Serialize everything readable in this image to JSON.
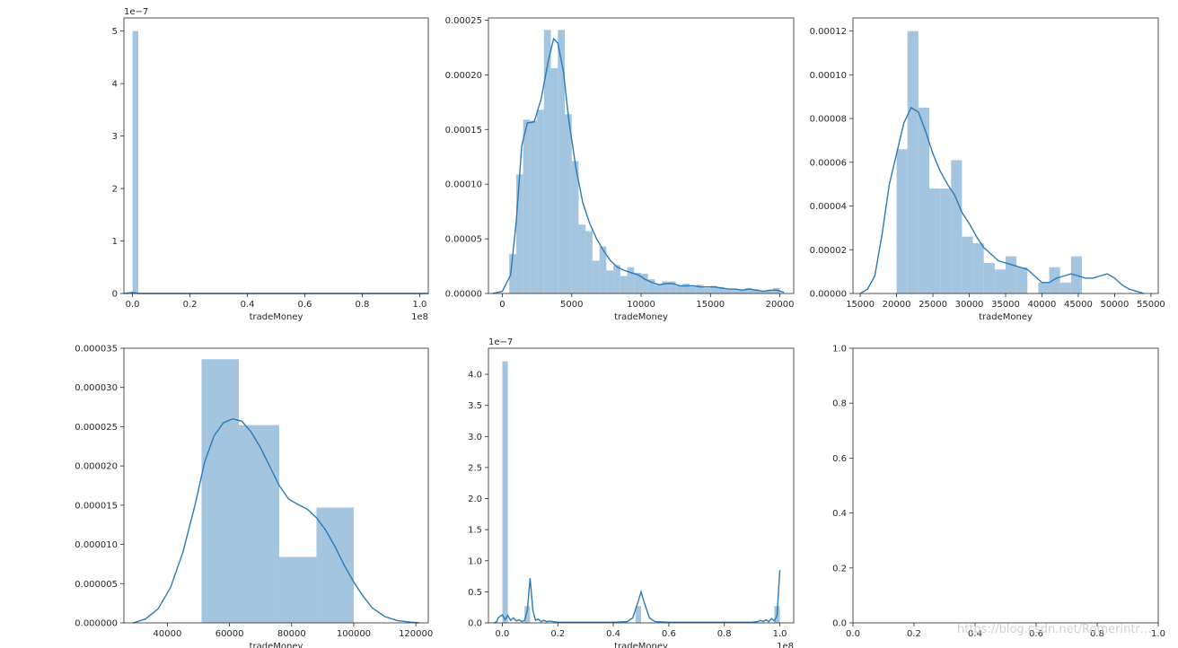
{
  "watermark": "https://blog.csdn.net/Romerintr…",
  "chart_data": [
    {
      "type": "histogram",
      "xlabel": "tradeMoney",
      "ylabel": "",
      "x_scale_label": "1e8",
      "y_scale_label": "1e−7",
      "xlim": [
        -0.03,
        1.03
      ],
      "ylim": [
        0,
        5.25
      ],
      "xticks": [
        0.0,
        0.2,
        0.4,
        0.6,
        0.8,
        1.0
      ],
      "xtick_labels": [
        "0.0",
        "0.2",
        "0.4",
        "0.6",
        "0.8",
        "1.0"
      ],
      "yticks": [
        0,
        1,
        2,
        3,
        4,
        5
      ],
      "ytick_labels": [
        "0",
        "1",
        "2",
        "3",
        "4",
        "5"
      ],
      "bins": [
        {
          "x0": 0.0,
          "x1": 0.02,
          "y": 5.0
        }
      ],
      "kde": [
        [
          -0.03,
          0.0
        ],
        [
          0.0,
          0.02
        ],
        [
          0.02,
          0.0
        ],
        [
          1.03,
          0.0
        ]
      ]
    },
    {
      "type": "histogram",
      "xlabel": "tradeMoney",
      "ylabel": "",
      "xlim": [
        -1000,
        21000
      ],
      "ylim": [
        0,
        0.000252
      ],
      "xticks": [
        0,
        5000,
        10000,
        15000,
        20000
      ],
      "xtick_labels": [
        "0",
        "5000",
        "10000",
        "15000",
        "20000"
      ],
      "yticks": [
        0,
        5e-05,
        0.0001,
        0.00015,
        0.0002,
        0.00025
      ],
      "ytick_labels": [
        "0.00000",
        "0.00005",
        "0.00010",
        "0.00015",
        "0.00020",
        "0.00025"
      ],
      "bins": [
        {
          "x0": 500,
          "x1": 1000,
          "y": 3.6e-05
        },
        {
          "x0": 1000,
          "x1": 1500,
          "y": 0.000109
        },
        {
          "x0": 1500,
          "x1": 2000,
          "y": 0.000159
        },
        {
          "x0": 2000,
          "x1": 2500,
          "y": 0.000158
        },
        {
          "x0": 2500,
          "x1": 3000,
          "y": 0.000168
        },
        {
          "x0": 3000,
          "x1": 3500,
          "y": 0.000241
        },
        {
          "x0": 3500,
          "x1": 4000,
          "y": 0.000206
        },
        {
          "x0": 4000,
          "x1": 4500,
          "y": 0.000241
        },
        {
          "x0": 4500,
          "x1": 5000,
          "y": 0.000164
        },
        {
          "x0": 5000,
          "x1": 5500,
          "y": 0.000121
        },
        {
          "x0": 5500,
          "x1": 6000,
          "y": 6.3e-05
        },
        {
          "x0": 6000,
          "x1": 6500,
          "y": 5.7e-05
        },
        {
          "x0": 6500,
          "x1": 7000,
          "y": 3e-05
        },
        {
          "x0": 7000,
          "x1": 7500,
          "y": 4.3e-05
        },
        {
          "x0": 7500,
          "x1": 8000,
          "y": 2.1e-05
        },
        {
          "x0": 8000,
          "x1": 8500,
          "y": 2.6e-05
        },
        {
          "x0": 8500,
          "x1": 9000,
          "y": 1.6e-05
        },
        {
          "x0": 9000,
          "x1": 9500,
          "y": 2.4e-05
        },
        {
          "x0": 9500,
          "x1": 10000,
          "y": 1.9e-05
        },
        {
          "x0": 10000,
          "x1": 10500,
          "y": 1.8e-05
        },
        {
          "x0": 10500,
          "x1": 11000,
          "y": 1.3e-05
        },
        {
          "x0": 11000,
          "x1": 11500,
          "y": 8e-06
        },
        {
          "x0": 11500,
          "x1": 12000,
          "y": 1.1e-05
        },
        {
          "x0": 12000,
          "x1": 12500,
          "y": 1.1e-05
        },
        {
          "x0": 12500,
          "x1": 13000,
          "y": 7e-06
        },
        {
          "x0": 13000,
          "x1": 13500,
          "y": 9e-06
        },
        {
          "x0": 13500,
          "x1": 14000,
          "y": 6e-06
        },
        {
          "x0": 14000,
          "x1": 14500,
          "y": 8e-06
        },
        {
          "x0": 14500,
          "x1": 15000,
          "y": 5e-06
        },
        {
          "x0": 15000,
          "x1": 15500,
          "y": 7e-06
        },
        {
          "x0": 15500,
          "x1": 16000,
          "y": 6e-06
        },
        {
          "x0": 16000,
          "x1": 16500,
          "y": 4e-06
        },
        {
          "x0": 16500,
          "x1": 17000,
          "y": 4e-06
        },
        {
          "x0": 17000,
          "x1": 17500,
          "y": 3e-06
        },
        {
          "x0": 17500,
          "x1": 18000,
          "y": 5e-06
        },
        {
          "x0": 18000,
          "x1": 18500,
          "y": 4e-06
        },
        {
          "x0": 18500,
          "x1": 19000,
          "y": 2e-06
        },
        {
          "x0": 19000,
          "x1": 19500,
          "y": 3e-06
        },
        {
          "x0": 19500,
          "x1": 20000,
          "y": 5e-06
        }
      ],
      "kde": [
        [
          -700,
          0.0
        ],
        [
          0,
          2e-06
        ],
        [
          600,
          1.7e-05
        ],
        [
          1000,
          6.5e-05
        ],
        [
          1400,
          0.000135
        ],
        [
          1800,
          0.000156
        ],
        [
          2300,
          0.000157
        ],
        [
          2800,
          0.000178
        ],
        [
          3300,
          0.000212
        ],
        [
          3700,
          0.000233
        ],
        [
          4000,
          0.000229
        ],
        [
          4400,
          0.000203
        ],
        [
          4800,
          0.000158
        ],
        [
          5300,
          0.000115
        ],
        [
          5800,
          8.3e-05
        ],
        [
          6300,
          6.4e-05
        ],
        [
          6800,
          5e-05
        ],
        [
          7300,
          3.9e-05
        ],
        [
          7800,
          3e-05
        ],
        [
          8300,
          2.4e-05
        ],
        [
          8800,
          2.1e-05
        ],
        [
          9300,
          1.9e-05
        ],
        [
          9800,
          1.7e-05
        ],
        [
          10300,
          1.3e-05
        ],
        [
          10800,
          1e-05
        ],
        [
          11300,
          8e-06
        ],
        [
          11800,
          9e-06
        ],
        [
          12300,
          9e-06
        ],
        [
          12800,
          7e-06
        ],
        [
          13300,
          7e-06
        ],
        [
          13800,
          7e-06
        ],
        [
          14300,
          6e-06
        ],
        [
          14800,
          6e-06
        ],
        [
          15300,
          6e-06
        ],
        [
          15800,
          5e-06
        ],
        [
          16300,
          4e-06
        ],
        [
          16800,
          4e-06
        ],
        [
          17300,
          3e-06
        ],
        [
          17800,
          4e-06
        ],
        [
          18300,
          3e-06
        ],
        [
          18800,
          2e-06
        ],
        [
          19300,
          3e-06
        ],
        [
          19800,
          3e-06
        ],
        [
          20300,
          1e-06
        ]
      ]
    },
    {
      "type": "histogram",
      "xlabel": "tradeMoney",
      "ylabel": "",
      "xlim": [
        14000,
        56000
      ],
      "ylim": [
        0,
        0.000126
      ],
      "xticks": [
        15000,
        20000,
        25000,
        30000,
        35000,
        40000,
        45000,
        50000,
        55000
      ],
      "xtick_labels": [
        "15000",
        "20000",
        "25000",
        "30000",
        "35000",
        "40000",
        "45000",
        "50000",
        "55000"
      ],
      "yticks": [
        0,
        2e-05,
        4e-05,
        6e-05,
        8e-05,
        0.0001,
        0.00012
      ],
      "ytick_labels": [
        "0.00000",
        "0.00002",
        "0.00004",
        "0.00006",
        "0.00008",
        "0.00010",
        "0.00012"
      ],
      "bins": [
        {
          "x0": 20000,
          "x1": 21500,
          "y": 6.6e-05
        },
        {
          "x0": 21500,
          "x1": 23000,
          "y": 0.00012
        },
        {
          "x0": 23000,
          "x1": 24500,
          "y": 8.5e-05
        },
        {
          "x0": 24500,
          "x1": 26000,
          "y": 4.8e-05
        },
        {
          "x0": 26000,
          "x1": 27500,
          "y": 4.8e-05
        },
        {
          "x0": 27500,
          "x1": 29000,
          "y": 6.1e-05
        },
        {
          "x0": 29000,
          "x1": 30500,
          "y": 2.6e-05
        },
        {
          "x0": 30500,
          "x1": 32000,
          "y": 2.3e-05
        },
        {
          "x0": 32000,
          "x1": 33500,
          "y": 1.4e-05
        },
        {
          "x0": 33500,
          "x1": 35000,
          "y": 1.1e-05
        },
        {
          "x0": 35000,
          "x1": 36500,
          "y": 1.7e-05
        },
        {
          "x0": 36500,
          "x1": 38000,
          "y": 1.2e-05
        },
        {
          "x0": 38000,
          "x1": 39500,
          "y": 0.0
        },
        {
          "x0": 39500,
          "x1": 41000,
          "y": 5e-06
        },
        {
          "x0": 41000,
          "x1": 42500,
          "y": 1.2e-05
        },
        {
          "x0": 42500,
          "x1": 44000,
          "y": 5e-06
        },
        {
          "x0": 44000,
          "x1": 45500,
          "y": 1.7e-05
        }
      ],
      "kde": [
        [
          15000,
          0.0
        ],
        [
          16000,
          2e-06
        ],
        [
          17000,
          8e-06
        ],
        [
          18000,
          2.7e-05
        ],
        [
          19000,
          5e-05
        ],
        [
          20000,
          6.4e-05
        ],
        [
          21000,
          7.8e-05
        ],
        [
          22000,
          8.5e-05
        ],
        [
          23000,
          8.3e-05
        ],
        [
          24000,
          7.4e-05
        ],
        [
          25000,
          6.4e-05
        ],
        [
          26000,
          5.6e-05
        ],
        [
          27000,
          5e-05
        ],
        [
          28000,
          4.5e-05
        ],
        [
          29000,
          3.7e-05
        ],
        [
          30000,
          3.2e-05
        ],
        [
          31000,
          2.6e-05
        ],
        [
          32000,
          2.1e-05
        ],
        [
          33000,
          1.8e-05
        ],
        [
          34000,
          1.5e-05
        ],
        [
          35000,
          1.4e-05
        ],
        [
          36000,
          1.3e-05
        ],
        [
          37000,
          1.2e-05
        ],
        [
          38000,
          1.1e-05
        ],
        [
          39000,
          8e-06
        ],
        [
          40000,
          5e-06
        ],
        [
          41000,
          5e-06
        ],
        [
          42000,
          7e-06
        ],
        [
          43000,
          8e-06
        ],
        [
          44000,
          9e-06
        ],
        [
          45000,
          8e-06
        ],
        [
          46000,
          7e-06
        ],
        [
          47000,
          7e-06
        ],
        [
          48000,
          8e-06
        ],
        [
          49000,
          9e-06
        ],
        [
          50000,
          7e-06
        ],
        [
          51000,
          4e-06
        ],
        [
          52000,
          2e-06
        ],
        [
          53000,
          1e-06
        ],
        [
          54000,
          0.0
        ]
      ]
    },
    {
      "type": "histogram",
      "xlabel": "tradeMoney",
      "ylabel": "",
      "xlim": [
        26000,
        124000
      ],
      "ylim": [
        0,
        3.5e-05
      ],
      "xticks": [
        40000,
        60000,
        80000,
        100000,
        120000
      ],
      "xtick_labels": [
        "40000",
        "60000",
        "80000",
        "100000",
        "120000"
      ],
      "yticks": [
        0,
        5e-06,
        1e-05,
        1.5e-05,
        2e-05,
        2.5e-05,
        3e-05,
        3.5e-05
      ],
      "ytick_labels": [
        "0.000000",
        "0.000005",
        "0.000010",
        "0.000015",
        "0.000020",
        "0.000025",
        "0.000030",
        "0.000035"
      ],
      "bins": [
        {
          "x0": 51000,
          "x1": 63000,
          "y": 3.36e-05
        },
        {
          "x0": 63000,
          "x1": 76000,
          "y": 2.52e-05
        },
        {
          "x0": 76000,
          "x1": 88000,
          "y": 8.4e-06
        },
        {
          "x0": 88000,
          "x1": 100000,
          "y": 1.47e-05
        }
      ],
      "kde": [
        [
          29000,
          0.0
        ],
        [
          33000,
          5e-07
        ],
        [
          37000,
          1.8e-06
        ],
        [
          41000,
          4.5e-06
        ],
        [
          45000,
          9e-06
        ],
        [
          49000,
          1.52e-05
        ],
        [
          52000,
          2.05e-05
        ],
        [
          55000,
          2.38e-05
        ],
        [
          58000,
          2.55e-05
        ],
        [
          61000,
          2.6e-05
        ],
        [
          64000,
          2.57e-05
        ],
        [
          67000,
          2.43e-05
        ],
        [
          70000,
          2.23e-05
        ],
        [
          73000,
          1.99e-05
        ],
        [
          76000,
          1.75e-05
        ],
        [
          79000,
          1.58e-05
        ],
        [
          82000,
          1.51e-05
        ],
        [
          85000,
          1.45e-05
        ],
        [
          88000,
          1.34e-05
        ],
        [
          91000,
          1.18e-05
        ],
        [
          94000,
          9.7e-06
        ],
        [
          97000,
          7.3e-06
        ],
        [
          100000,
          5.2e-06
        ],
        [
          103000,
          3.4e-06
        ],
        [
          106000,
          1.9e-06
        ],
        [
          110000,
          8e-07
        ],
        [
          114000,
          3e-07
        ],
        [
          118000,
          1e-07
        ],
        [
          121000,
          0.0
        ]
      ]
    },
    {
      "type": "histogram",
      "xlabel": "tradeMoney",
      "ylabel": "",
      "x_scale_label": "1e8",
      "y_scale_label": "1e−7",
      "xlim": [
        -0.05,
        1.05
      ],
      "ylim": [
        0,
        4.42
      ],
      "xticks": [
        0.0,
        0.2,
        0.4,
        0.6,
        0.8,
        1.0
      ],
      "xtick_labels": [
        "0.0",
        "0.2",
        "0.4",
        "0.6",
        "0.8",
        "1.0"
      ],
      "yticks": [
        0,
        0.5,
        1.0,
        1.5,
        2.0,
        2.5,
        3.0,
        3.5,
        4.0
      ],
      "ytick_labels": [
        "0.0",
        "0.5",
        "1.0",
        "1.5",
        "2.0",
        "2.5",
        "3.0",
        "3.5",
        "4.0"
      ],
      "bins": [
        {
          "x0": 0.0,
          "x1": 0.02,
          "y": 4.21
        },
        {
          "x0": 0.08,
          "x1": 0.1,
          "y": 0.27
        },
        {
          "x0": 0.48,
          "x1": 0.5,
          "y": 0.27
        },
        {
          "x0": 0.98,
          "x1": 1.0,
          "y": 0.27
        }
      ],
      "kde": [
        [
          -0.03,
          0.0
        ],
        [
          -0.02,
          0.02
        ],
        [
          -0.015,
          0.08
        ],
        [
          0.0,
          0.13
        ],
        [
          0.01,
          0.05
        ],
        [
          0.02,
          0.12
        ],
        [
          0.03,
          0.04
        ],
        [
          0.04,
          0.08
        ],
        [
          0.05,
          0.03
        ],
        [
          0.06,
          0.05
        ],
        [
          0.07,
          0.02
        ],
        [
          0.08,
          0.04
        ],
        [
          0.09,
          0.2
        ],
        [
          0.1,
          0.72
        ],
        [
          0.11,
          0.2
        ],
        [
          0.12,
          0.04
        ],
        [
          0.13,
          0.06
        ],
        [
          0.14,
          0.02
        ],
        [
          0.15,
          0.04
        ],
        [
          0.16,
          0.02
        ],
        [
          0.17,
          0.03
        ],
        [
          0.2,
          0.01
        ],
        [
          0.3,
          0.01
        ],
        [
          0.4,
          0.01
        ],
        [
          0.45,
          0.02
        ],
        [
          0.47,
          0.08
        ],
        [
          0.49,
          0.35
        ],
        [
          0.5,
          0.5
        ],
        [
          0.51,
          0.35
        ],
        [
          0.53,
          0.08
        ],
        [
          0.55,
          0.02
        ],
        [
          0.6,
          0.01
        ],
        [
          0.7,
          0.01
        ],
        [
          0.8,
          0.01
        ],
        [
          0.9,
          0.01
        ],
        [
          0.92,
          0.02
        ],
        [
          0.93,
          0.04
        ],
        [
          0.94,
          0.02
        ],
        [
          0.95,
          0.05
        ],
        [
          0.96,
          0.02
        ],
        [
          0.97,
          0.07
        ],
        [
          0.98,
          0.03
        ],
        [
          0.99,
          0.12
        ],
        [
          1.0,
          0.85
        ]
      ]
    },
    {
      "type": "empty",
      "xlim": [
        0,
        1
      ],
      "ylim": [
        0,
        1
      ],
      "xticks": [
        0.0,
        0.2,
        0.4,
        0.6,
        0.8,
        1.0
      ],
      "xtick_labels": [
        "0.0",
        "0.2",
        "0.4",
        "0.6",
        "0.8",
        "1.0"
      ],
      "yticks": [
        0.0,
        0.2,
        0.4,
        0.6,
        0.8,
        1.0
      ],
      "ytick_labels": [
        "0.0",
        "0.2",
        "0.4",
        "0.6",
        "0.8",
        "1.0"
      ]
    }
  ]
}
